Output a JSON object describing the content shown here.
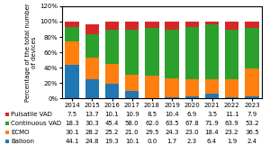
{
  "chart_data": {
    "type": "bar",
    "stacked": true,
    "data_labels": true,
    "categories": [
      "2014",
      "2015",
      "2016",
      "2017",
      "2018",
      "2019",
      "2020",
      "2021",
      "2022",
      "2023"
    ],
    "series": [
      {
        "name": "Balloon",
        "values": [
          44.1,
          24.8,
          19.3,
          10.1,
          0.0,
          1.7,
          2.3,
          6.4,
          1.9,
          2.4
        ]
      },
      {
        "name": "ECMO",
        "values": [
          30.1,
          28.2,
          25.2,
          21.0,
          29.5,
          24.3,
          23.0,
          18.4,
          23.2,
          36.5
        ]
      },
      {
        "name": "Continuous VAD",
        "values": [
          18.3,
          30.3,
          45.4,
          58.0,
          62.0,
          63.5,
          67.8,
          71.9,
          63.9,
          53.2
        ]
      },
      {
        "name": "Pulsatile VAD",
        "values": [
          7.5,
          13.7,
          10.1,
          10.9,
          8.5,
          10.4,
          6.9,
          3.5,
          11.1,
          7.9
        ]
      }
    ],
    "ylabel": "Percentage of the total number of devices",
    "ylim": [
      0,
      120
    ],
    "yticks": [
      {
        "value": 0,
        "label": "0%"
      },
      {
        "value": 20,
        "label": "20%"
      },
      {
        "value": 40,
        "label": "40%"
      },
      {
        "value": 60,
        "label": "60%"
      },
      {
        "value": 80,
        "label": "80%"
      },
      {
        "value": 100,
        "label": "100%"
      },
      {
        "value": 120,
        "label": "120%"
      }
    ]
  }
}
